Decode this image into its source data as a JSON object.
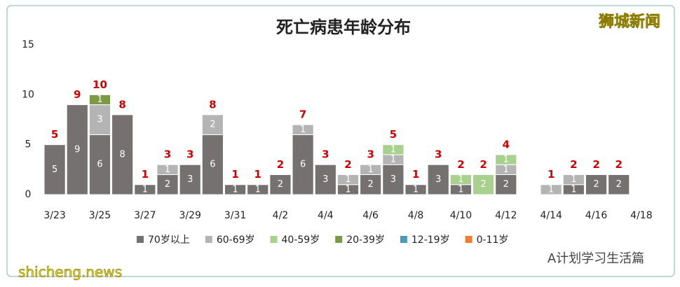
{
  "chart_data": {
    "type": "stacked_bar",
    "title": "死亡病患年龄分布",
    "watermark": "狮城新闻",
    "footer_account": "A计划学习生活篇",
    "footer_site": "shicheng.news",
    "categories": [
      "3/23",
      null,
      "3/25",
      null,
      "3/27",
      null,
      "3/29",
      null,
      "3/31",
      null,
      "4/2",
      null,
      "4/4",
      null,
      "4/6",
      null,
      "4/8",
      null,
      "4/10",
      null,
      "4/12",
      null,
      "4/14",
      null,
      "4/16",
      null,
      "4/18"
    ],
    "series": [
      {
        "name": "70岁以上",
        "color": "#767171",
        "values": [
          5,
          9,
          6,
          8,
          1,
          2,
          3,
          6,
          1,
          1,
          2,
          6,
          3,
          1,
          2,
          3,
          1,
          3,
          1,
          null,
          2,
          null,
          null,
          1,
          2,
          2,
          null
        ]
      },
      {
        "name": "60-69岁",
        "color": "#b4b4b4",
        "values": [
          null,
          null,
          3,
          null,
          null,
          1,
          null,
          2,
          null,
          null,
          null,
          1,
          null,
          1,
          1,
          1,
          null,
          null,
          null,
          null,
          1,
          null,
          1,
          1,
          null,
          null,
          null
        ]
      },
      {
        "name": "40-59岁",
        "color": "#a9d18e",
        "values": [
          null,
          null,
          null,
          null,
          null,
          null,
          null,
          null,
          null,
          null,
          null,
          null,
          null,
          null,
          null,
          1,
          null,
          null,
          1,
          2,
          1,
          null,
          null,
          null,
          null,
          null,
          null
        ]
      },
      {
        "name": "20-39岁",
        "color": "#7b9a45",
        "values": [
          null,
          null,
          1,
          null,
          null,
          null,
          null,
          null,
          null,
          null,
          null,
          null,
          null,
          null,
          null,
          null,
          null,
          null,
          null,
          null,
          null,
          null,
          null,
          null,
          null,
          null,
          null
        ]
      },
      {
        "name": "12-19岁",
        "color": "#4a9bb5",
        "values": [
          null,
          null,
          null,
          null,
          null,
          null,
          null,
          null,
          null,
          null,
          null,
          null,
          null,
          null,
          null,
          null,
          null,
          null,
          null,
          null,
          null,
          null,
          null,
          null,
          null,
          null,
          null
        ]
      },
      {
        "name": "0-11岁",
        "color": "#ed7d31",
        "values": [
          null,
          null,
          null,
          null,
          null,
          null,
          null,
          null,
          null,
          null,
          null,
          null,
          null,
          null,
          null,
          null,
          null,
          null,
          null,
          null,
          null,
          null,
          null,
          null,
          null,
          null,
          null
        ]
      }
    ],
    "totals": [
      5,
      9,
      10,
      8,
      1,
      3,
      3,
      8,
      1,
      1,
      2,
      7,
      3,
      2,
      3,
      5,
      1,
      3,
      2,
      2,
      4,
      null,
      1,
      2,
      2,
      2,
      null
    ],
    "total_color": "#d00000",
    "ylim": [
      0,
      15
    ],
    "yticks": [
      0,
      5,
      10,
      15
    ],
    "grid": false
  }
}
